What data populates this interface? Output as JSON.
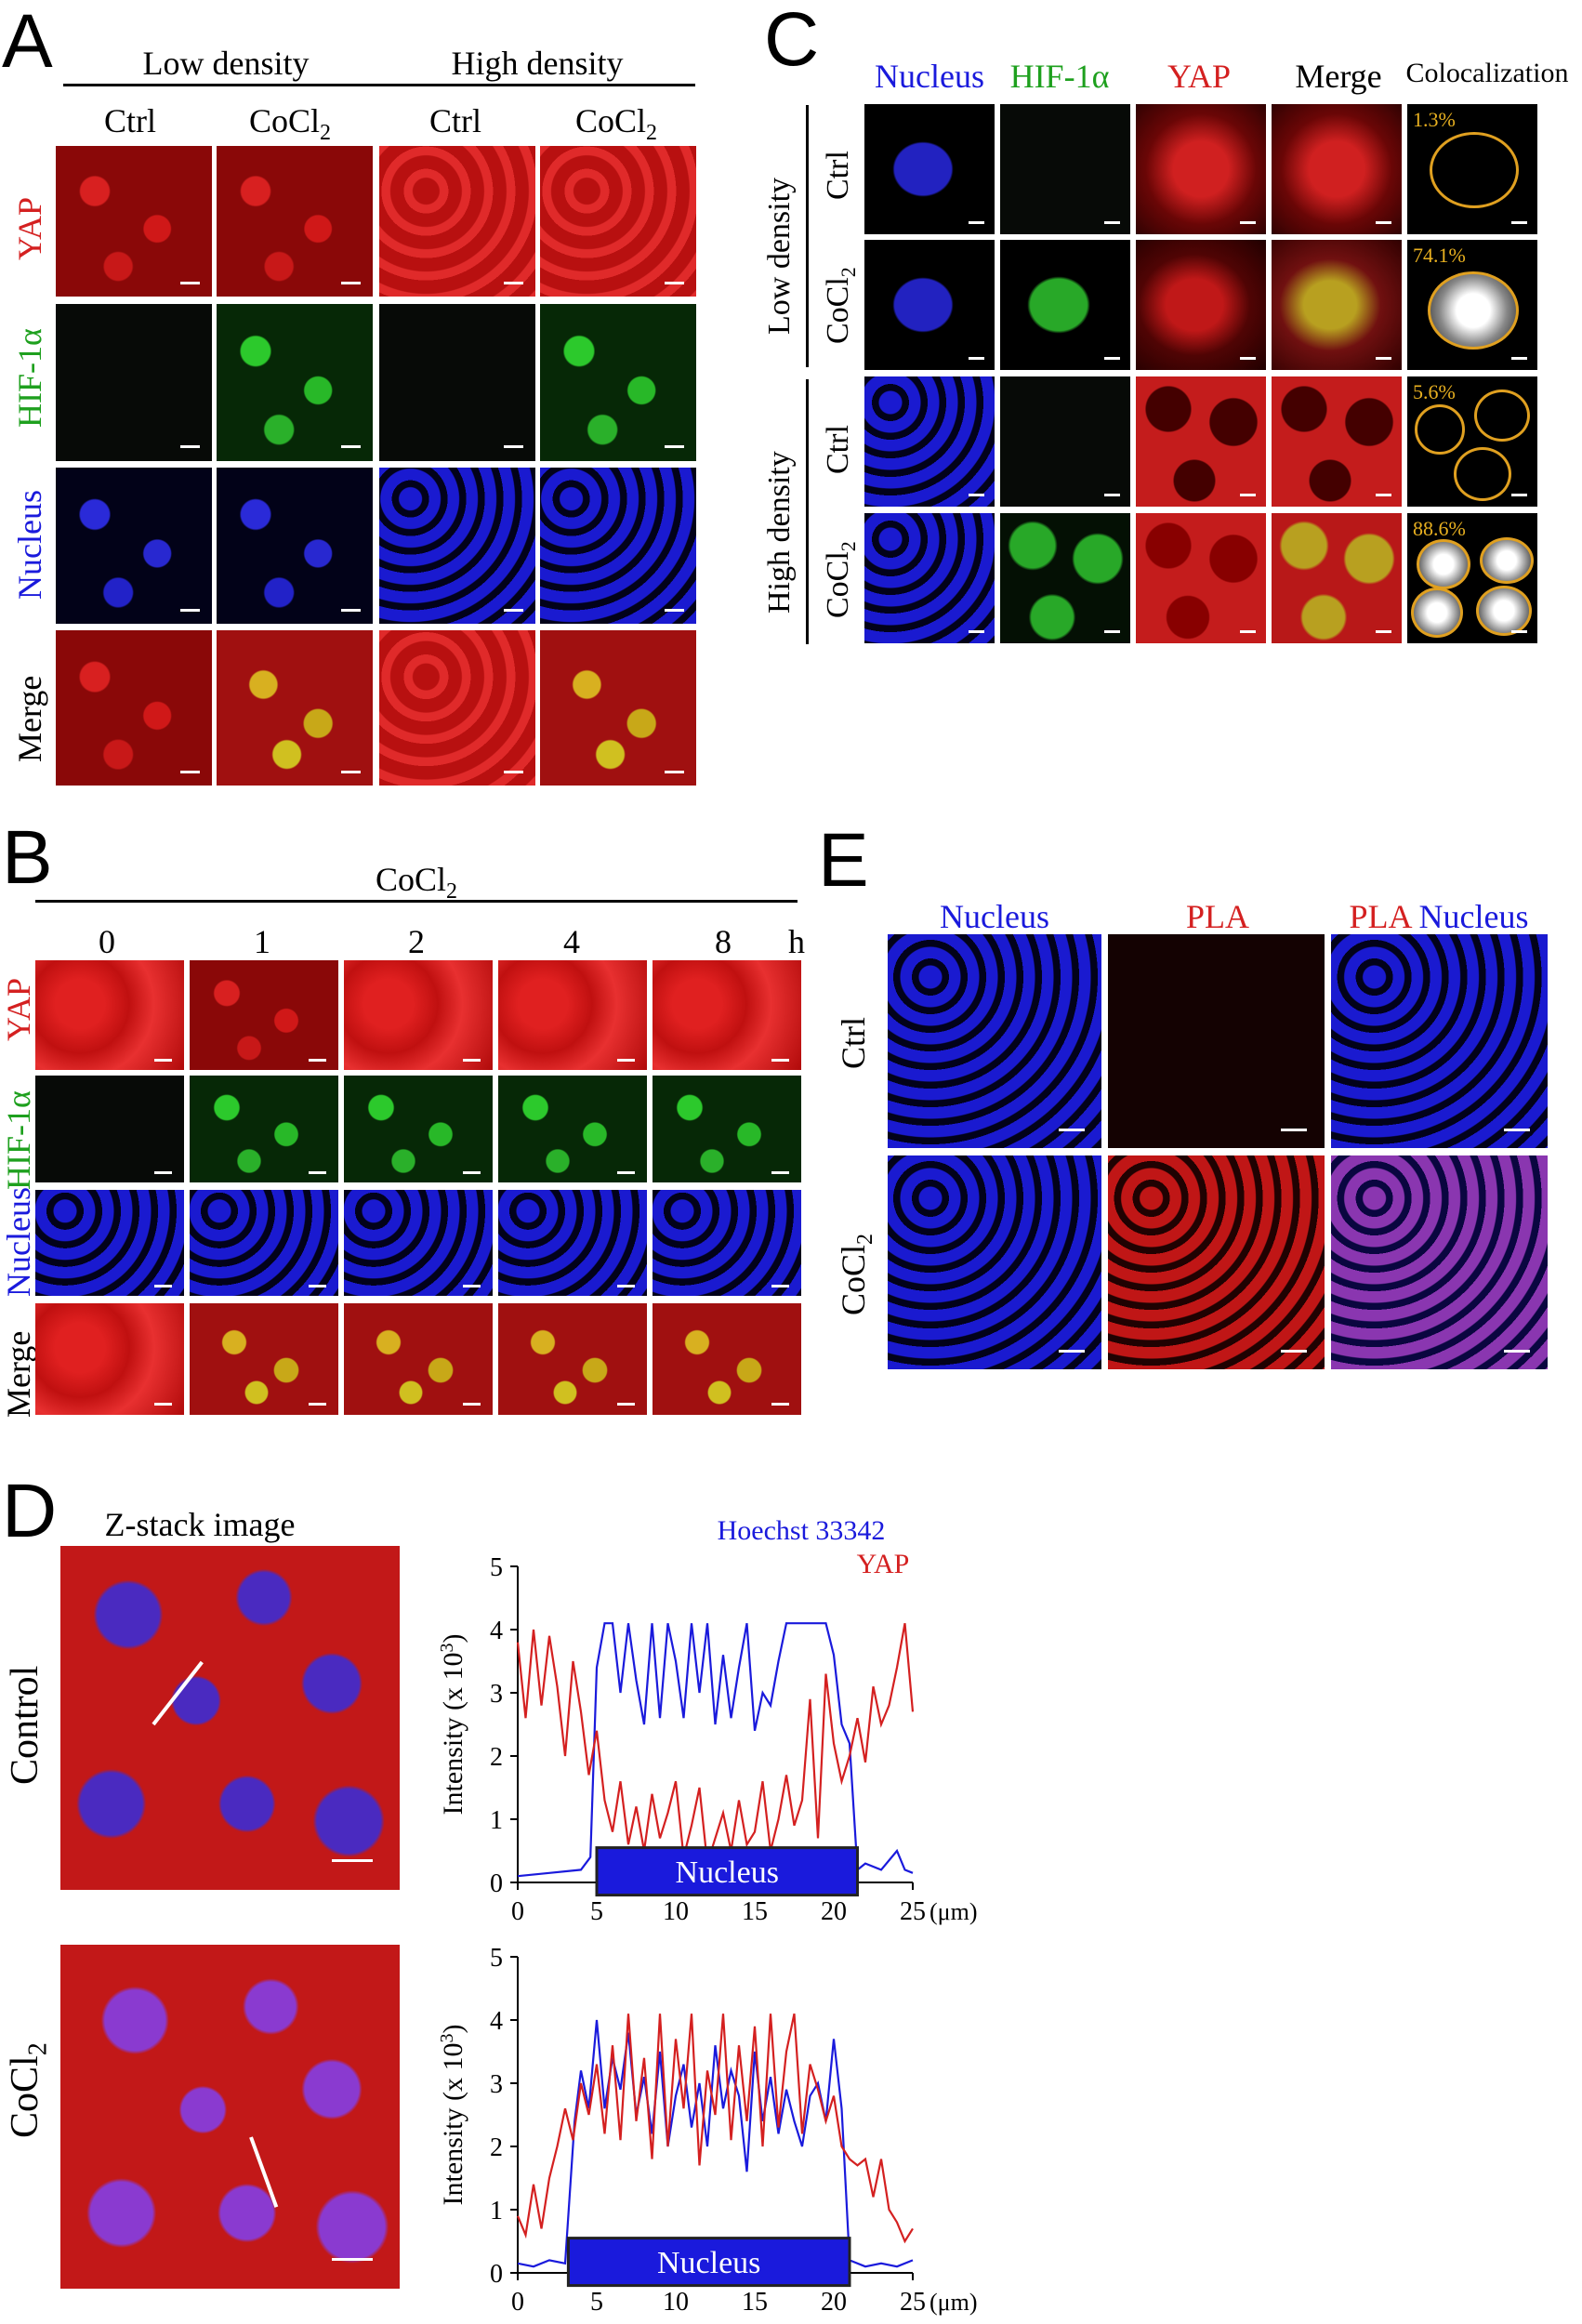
{
  "panelA": {
    "letter": "A",
    "group_low": "Low density",
    "group_high": "High density",
    "col_ctrl": "Ctrl",
    "col_cocl": "CoCl",
    "sub2": "2",
    "row_yap": "YAP",
    "row_hif": "HIF-1α",
    "row_nucleus": "Nucleus",
    "row_merge": "Merge"
  },
  "panelB": {
    "letter": "B",
    "treatment": "CoCl",
    "sub2": "2",
    "times": [
      "0",
      "1",
      "2",
      "4",
      "8"
    ],
    "unit": "h",
    "row_yap": "YAP",
    "row_hif": "HIF-1α",
    "row_nucleus": "Nucleus",
    "row_merge": "Merge"
  },
  "panelC": {
    "letter": "C",
    "col_nucleus": "Nucleus",
    "col_hif": "HIF-1α",
    "col_yap": "YAP",
    "col_merge": "Merge",
    "col_coloc": "Colocalization",
    "group_low": "Low density",
    "group_high": "High density",
    "row_ctrl": "Ctrl",
    "row_cocl": "CoCl",
    "sub2": "2",
    "percents": [
      "1.3%",
      "74.1%",
      "5.6%",
      "88.6%"
    ]
  },
  "panelD": {
    "letter": "D",
    "image_title": "Z-stack image",
    "row_control": "Control",
    "row_cocl": "CoCl",
    "sub2": "2",
    "legend_hoechst": "Hoechst 33342",
    "legend_yap": "YAP",
    "ylabel_main": "Intensity (x 10",
    "ylabel_sup": "3",
    "ylabel_end": ")",
    "xunit": "(μm)",
    "nucleus_label": "Nucleus",
    "yticks": [
      "0",
      "1",
      "2",
      "3",
      "4",
      "5"
    ],
    "xticks": [
      "0",
      "5",
      "10",
      "15",
      "20",
      "25"
    ]
  },
  "panelE": {
    "letter": "E",
    "col_nucleus": "Nucleus",
    "col_pla": "PLA",
    "col_merge_pla": "PLA",
    "col_merge_nucleus": "Nucleus",
    "row_ctrl": "Ctrl",
    "row_cocl": "CoCl",
    "sub2": "2"
  },
  "colors": {
    "yap": "#d42020",
    "hif": "#1ea01e",
    "nucleus": "#1a1adc",
    "percent": "#e8b020"
  },
  "chart_data": [
    {
      "type": "line",
      "condition": "Control",
      "xlabel": "(μm)",
      "ylabel": "Intensity (x 10^3)",
      "xlim": [
        0,
        25
      ],
      "ylim": [
        0,
        5
      ],
      "nucleus_span": [
        5,
        21.5
      ],
      "series": [
        {
          "name": "Hoechst 33342",
          "x": [
            0,
            2,
            4,
            4.6,
            5,
            5.5,
            6,
            6.5,
            7,
            7.5,
            8,
            8.5,
            9,
            9.5,
            10,
            10.5,
            11,
            11.5,
            12,
            12.5,
            13,
            13.5,
            14,
            14.5,
            15,
            15.5,
            16,
            16.5,
            17,
            17.5,
            18,
            18.5,
            19,
            19.5,
            20,
            20.5,
            21,
            21.5,
            22,
            23,
            24,
            24.5,
            25
          ],
          "y": [
            0.1,
            0.15,
            0.2,
            0.4,
            3.4,
            4.1,
            4.1,
            3.0,
            4.1,
            3.2,
            2.5,
            4.1,
            2.6,
            4.1,
            3.5,
            2.6,
            4.1,
            3.0,
            4.1,
            2.5,
            3.6,
            2.6,
            3.4,
            4.1,
            2.4,
            3.0,
            2.8,
            3.5,
            4.1,
            4.1,
            4.1,
            4.1,
            4.1,
            4.1,
            3.6,
            2.5,
            2.2,
            0.2,
            0.3,
            0.2,
            0.5,
            0.2,
            0.15
          ]
        },
        {
          "name": "YAP",
          "x": [
            0,
            0.5,
            1,
            1.5,
            2,
            2.5,
            3,
            3.5,
            4,
            4.5,
            5,
            5.5,
            6,
            6.5,
            7,
            7.5,
            8,
            8.5,
            9,
            9.5,
            10,
            10.5,
            11,
            11.5,
            12,
            12.5,
            13,
            13.5,
            14,
            14.5,
            15,
            15.5,
            16,
            16.5,
            17,
            17.5,
            18,
            18.5,
            19,
            19.5,
            20,
            20.5,
            21,
            21.5,
            22,
            22.5,
            23,
            23.5,
            24,
            24.5,
            25
          ],
          "y": [
            3.8,
            2.6,
            4.0,
            2.8,
            3.9,
            3.1,
            2.0,
            3.5,
            2.7,
            1.7,
            2.4,
            1.3,
            0.8,
            1.6,
            0.6,
            1.2,
            0.5,
            1.4,
            0.7,
            1.1,
            1.6,
            0.4,
            0.9,
            1.5,
            0.3,
            0.7,
            1.1,
            0.5,
            1.3,
            0.6,
            0.8,
            1.6,
            0.5,
            1.0,
            1.7,
            0.9,
            1.3,
            2.9,
            0.7,
            3.3,
            2.2,
            1.6,
            2.0,
            2.6,
            1.9,
            3.1,
            2.5,
            2.8,
            3.4,
            4.1,
            2.7
          ]
        }
      ]
    },
    {
      "type": "line",
      "condition": "CoCl2",
      "xlabel": "(μm)",
      "ylabel": "Intensity (x 10^3)",
      "xlim": [
        0,
        25
      ],
      "ylim": [
        0,
        5
      ],
      "nucleus_span": [
        3.2,
        21
      ],
      "series": [
        {
          "name": "Hoechst 33342",
          "x": [
            0,
            1,
            2,
            3,
            3.6,
            4,
            4.5,
            5,
            5.5,
            6,
            6.5,
            7,
            7.5,
            8,
            8.5,
            9,
            9.5,
            10,
            10.5,
            11,
            11.5,
            12,
            12.5,
            13,
            13.5,
            14,
            14.5,
            15,
            15.5,
            16,
            16.5,
            17,
            17.5,
            18,
            18.5,
            19,
            19.5,
            20,
            20.5,
            21,
            22,
            23,
            24,
            25
          ],
          "y": [
            0.15,
            0.1,
            0.2,
            0.15,
            2.4,
            3.2,
            2.6,
            4.0,
            2.6,
            3.4,
            2.9,
            3.8,
            2.5,
            3.1,
            2.2,
            3.5,
            2.0,
            2.8,
            3.3,
            2.3,
            3.0,
            2.0,
            3.6,
            2.6,
            3.2,
            2.8,
            1.6,
            3.5,
            2.4,
            3.1,
            2.2,
            2.9,
            2.4,
            2.0,
            2.8,
            3.0,
            2.4,
            3.7,
            2.6,
            0.2,
            0.1,
            0.15,
            0.1,
            0.2
          ]
        },
        {
          "name": "YAP",
          "x": [
            0,
            0.5,
            1,
            1.5,
            2,
            2.5,
            3,
            3.5,
            4,
            4.5,
            5,
            5.5,
            6,
            6.5,
            7,
            7.5,
            8,
            8.5,
            9,
            9.5,
            10,
            10.5,
            11,
            11.5,
            12,
            12.5,
            13,
            13.5,
            14,
            14.5,
            15,
            15.5,
            16,
            16.5,
            17,
            17.5,
            18,
            18.5,
            19,
            19.5,
            20,
            20.5,
            21,
            21.5,
            22,
            22.5,
            23,
            23.5,
            24,
            24.5,
            25
          ],
          "y": [
            0.9,
            0.6,
            1.4,
            0.7,
            1.5,
            2.0,
            2.6,
            2.1,
            3.0,
            2.5,
            3.3,
            2.2,
            3.6,
            2.1,
            4.1,
            2.4,
            3.4,
            1.8,
            4.1,
            2.0,
            3.7,
            2.6,
            4.1,
            1.7,
            3.2,
            2.5,
            4.1,
            2.1,
            3.6,
            2.4,
            3.9,
            2.0,
            4.1,
            2.3,
            3.5,
            4.1,
            2.2,
            3.3,
            2.9,
            2.4,
            2.8,
            2.0,
            1.8,
            1.7,
            1.8,
            1.2,
            1.8,
            1.0,
            0.8,
            0.5,
            0.7
          ]
        }
      ]
    }
  ]
}
